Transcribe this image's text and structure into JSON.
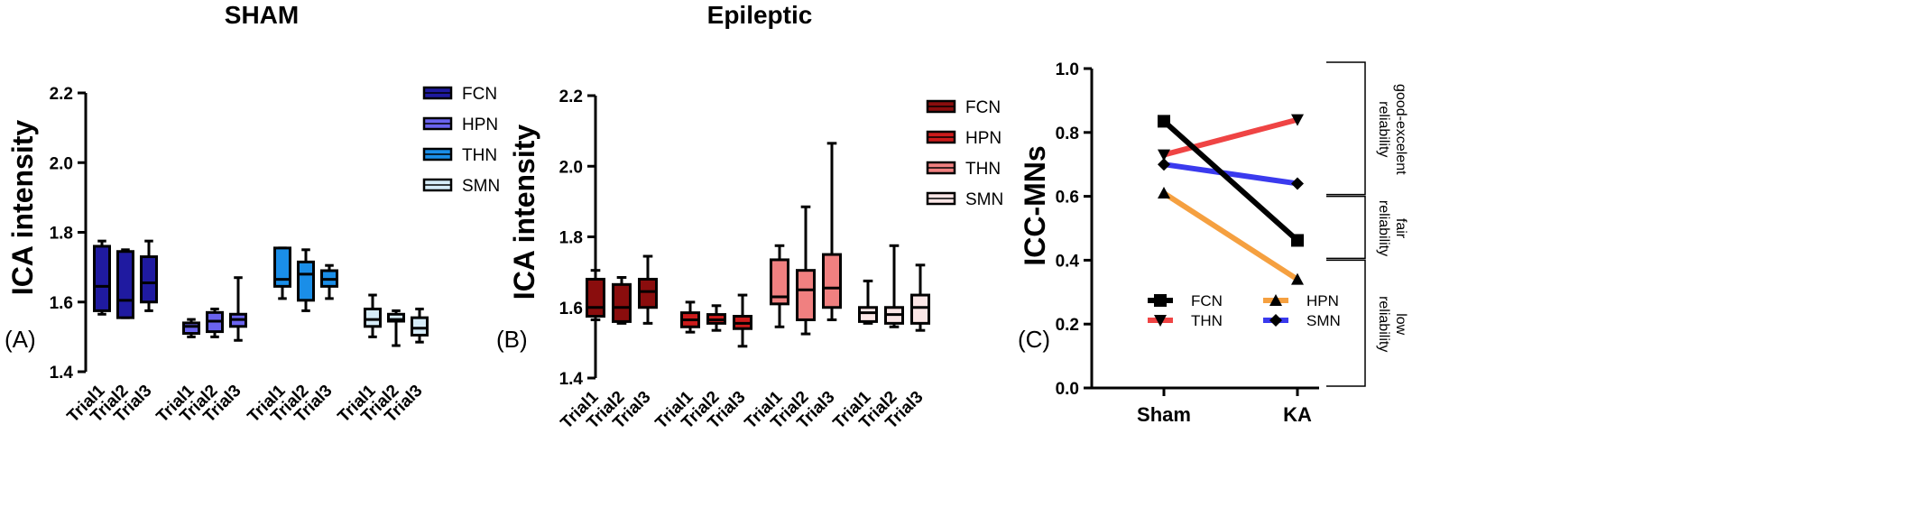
{
  "panel_labels": [
    "(A)",
    "(B)",
    "(C)"
  ],
  "chart_data": [
    {
      "type": "box",
      "title": "SHAM",
      "ylabel": "ICA intensity",
      "ylim": [
        1.4,
        2.2
      ],
      "yticks": [
        "1.4",
        "1.6",
        "1.8",
        "2.0",
        "2.2"
      ],
      "xtick_labels": [
        "Trial1",
        "Trial2",
        "Trial3"
      ],
      "legend": [
        "FCN",
        "HPN",
        "THN",
        "SMN"
      ],
      "colors": [
        "#1f1aa0",
        "#6a63ee",
        "#1a8ee8",
        "#d6ecf8"
      ],
      "groups": [
        {
          "name": "FCN",
          "boxes": [
            {
              "min": 1.565,
              "q1": 1.575,
              "median": 1.645,
              "q3": 1.76,
              "max": 1.775
            },
            {
              "min": 1.555,
              "q1": 1.555,
              "median": 1.605,
              "q3": 1.745,
              "max": 1.75
            },
            {
              "min": 1.575,
              "q1": 1.6,
              "median": 1.655,
              "q3": 1.73,
              "max": 1.775
            }
          ]
        },
        {
          "name": "HPN",
          "boxes": [
            {
              "min": 1.5,
              "q1": 1.51,
              "median": 1.53,
              "q3": 1.54,
              "max": 1.55
            },
            {
              "min": 1.5,
              "q1": 1.515,
              "median": 1.545,
              "q3": 1.57,
              "max": 1.58
            },
            {
              "min": 1.49,
              "q1": 1.53,
              "median": 1.55,
              "q3": 1.565,
              "max": 1.67
            }
          ]
        },
        {
          "name": "THN",
          "boxes": [
            {
              "min": 1.61,
              "q1": 1.645,
              "median": 1.665,
              "q3": 1.755,
              "max": 1.755
            },
            {
              "min": 1.575,
              "q1": 1.605,
              "median": 1.68,
              "q3": 1.715,
              "max": 1.75
            },
            {
              "min": 1.61,
              "q1": 1.645,
              "median": 1.665,
              "q3": 1.69,
              "max": 1.705
            }
          ]
        },
        {
          "name": "SMN",
          "boxes": [
            {
              "min": 1.5,
              "q1": 1.53,
              "median": 1.55,
              "q3": 1.58,
              "max": 1.62
            },
            {
              "min": 1.475,
              "q1": 1.545,
              "median": 1.55,
              "q3": 1.565,
              "max": 1.575
            },
            {
              "min": 1.485,
              "q1": 1.505,
              "median": 1.525,
              "q3": 1.555,
              "max": 1.58
            }
          ]
        }
      ]
    },
    {
      "type": "box",
      "title": "Epileptic",
      "ylabel": "ICA intensity",
      "ylim": [
        1.4,
        2.2
      ],
      "yticks": [
        "1.4",
        "1.6",
        "1.8",
        "2.0",
        "2.2"
      ],
      "xtick_labels": [
        "Trial1",
        "Trial2",
        "Trial3"
      ],
      "legend": [
        "FCN",
        "HPN",
        "THN",
        "SMN"
      ],
      "colors": [
        "#8a0d0d",
        "#cc1b1b",
        "#f08080",
        "#fbe6e6"
      ],
      "groups": [
        {
          "name": "FCN",
          "boxes": [
            {
              "min": 1.565,
              "q1": 1.575,
              "median": 1.6,
              "q3": 1.68,
              "max": 1.705
            },
            {
              "min": 1.555,
              "q1": 1.56,
              "median": 1.6,
              "q3": 1.665,
              "max": 1.685
            },
            {
              "min": 1.555,
              "q1": 1.6,
              "median": 1.645,
              "q3": 1.68,
              "max": 1.745
            }
          ]
        },
        {
          "name": "HPN",
          "boxes": [
            {
              "min": 1.53,
              "q1": 1.545,
              "median": 1.565,
              "q3": 1.585,
              "max": 1.615
            },
            {
              "min": 1.535,
              "q1": 1.555,
              "median": 1.565,
              "q3": 1.58,
              "max": 1.605
            },
            {
              "min": 1.49,
              "q1": 1.54,
              "median": 1.555,
              "q3": 1.575,
              "max": 1.635
            }
          ]
        },
        {
          "name": "THN",
          "boxes": [
            {
              "min": 1.545,
              "q1": 1.61,
              "median": 1.63,
              "q3": 1.735,
              "max": 1.775
            },
            {
              "min": 1.525,
              "q1": 1.565,
              "median": 1.65,
              "q3": 1.705,
              "max": 1.885
            },
            {
              "min": 1.565,
              "q1": 1.6,
              "median": 1.655,
              "q3": 1.75,
              "max": 2.065
            }
          ]
        },
        {
          "name": "SMN",
          "boxes": [
            {
              "min": 1.555,
              "q1": 1.56,
              "median": 1.585,
              "q3": 1.6,
              "max": 1.675
            },
            {
              "min": 1.545,
              "q1": 1.555,
              "median": 1.58,
              "q3": 1.6,
              "max": 1.775
            },
            {
              "min": 1.535,
              "q1": 1.555,
              "median": 1.6,
              "q3": 1.635,
              "max": 1.72
            }
          ]
        }
      ]
    },
    {
      "type": "line",
      "ylabel": "ICC-MNs",
      "ylim": [
        0.0,
        1.0
      ],
      "yticks": [
        "0.0",
        "0.2",
        "0.4",
        "0.6",
        "0.8",
        "1.0"
      ],
      "categories": [
        "Sham",
        "KA"
      ],
      "series": [
        {
          "name": "FCN",
          "values": [
            0.835,
            0.462
          ],
          "color": "#000000",
          "marker": "square"
        },
        {
          "name": "THN",
          "values": [
            0.73,
            0.84
          ],
          "color": "#ef4444",
          "marker": "triangle-down"
        },
        {
          "name": "HPN",
          "values": [
            0.61,
            0.34
          ],
          "color": "#f5a040",
          "marker": "triangle-up"
        },
        {
          "name": "SMN",
          "values": [
            0.7,
            0.64
          ],
          "color": "#3a3aee",
          "marker": "diamond"
        }
      ],
      "reliability_bands": [
        {
          "label_lines": [
            "good-excelent",
            "reliability"
          ],
          "range": [
            0.6,
            1.0
          ]
        },
        {
          "label_lines": [
            "fair",
            "reliability"
          ],
          "range": [
            0.4,
            0.6
          ]
        },
        {
          "label_lines": [
            "low",
            "reliability"
          ],
          "range": [
            0.0,
            0.4
          ]
        }
      ]
    }
  ]
}
